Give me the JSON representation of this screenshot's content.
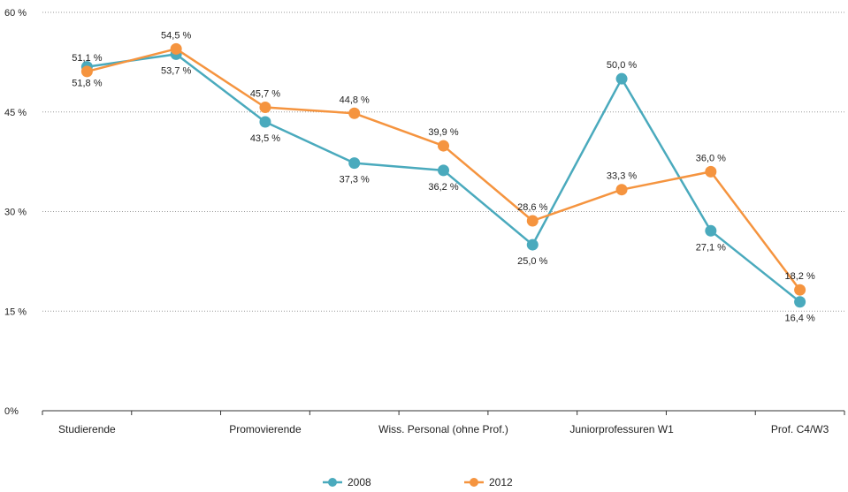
{
  "chart_data": {
    "type": "line",
    "title": "",
    "xlabel": "",
    "ylabel": "",
    "ylim": [
      0,
      60
    ],
    "yticks": [
      0,
      15,
      30,
      45,
      60
    ],
    "ytick_labels": [
      "0%",
      "15 %",
      "30 %",
      "45 %",
      "60 %"
    ],
    "grid": true,
    "legend_position": "bottom-center",
    "categories": [
      "Studierende",
      "",
      "Promovierende",
      "",
      "Wiss. Personal (ohne Prof.)",
      "",
      "Juniorprofessuren W1",
      "",
      "Prof. C4/W3"
    ],
    "series": [
      {
        "name": "2008",
        "color": "#4aaabd",
        "values": [
          51.8,
          53.7,
          43.5,
          37.3,
          36.2,
          25.0,
          50.0,
          27.1,
          16.4
        ],
        "labels": [
          "51,8 %",
          "53,7 %",
          "43,5 %",
          "37,3 %",
          "36,2 %",
          "25,0 %",
          "50,0 %",
          "27,1 %",
          "16,4 %"
        ],
        "label_pos": [
          "below",
          "below",
          "below",
          "below",
          "below",
          "below",
          "above",
          "below",
          "below"
        ]
      },
      {
        "name": "2012",
        "color": "#f5943f",
        "values": [
          51.1,
          54.5,
          45.7,
          44.8,
          39.9,
          28.6,
          33.3,
          36.0,
          18.2
        ],
        "labels": [
          "51,1 %",
          "54,5 %",
          "45,7 %",
          "44,8 %",
          "39,9 %",
          "28,6 %",
          "33,3 %",
          "36,0 %",
          "18,2 %"
        ],
        "label_pos": [
          "above",
          "above",
          "above",
          "above",
          "above",
          "above",
          "above",
          "above",
          "above"
        ]
      }
    ]
  }
}
